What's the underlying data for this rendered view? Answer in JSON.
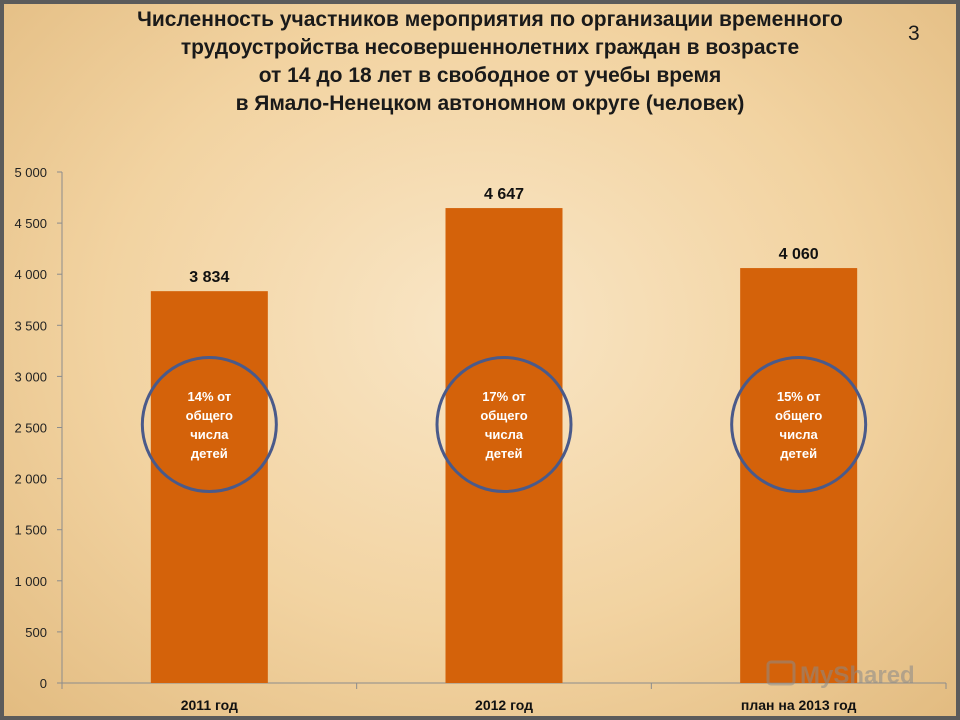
{
  "slide": {
    "title_lines": [
      "Численность участников мероприятия по организации временного",
      "трудоустройства несовершеннолетних граждан в возрасте",
      "от 14 до 18 лет в свободное от учебы время",
      "в Ямало-Ненецком автономном округе (человек)"
    ],
    "page_number": "3"
  },
  "watermark": {
    "text": "MyShared"
  },
  "chart_data": {
    "type": "bar",
    "title": "Численность участников мероприятия по организации временного трудоустройства несовершеннолетних граждан в возрасте от 14 до 18 лет в свободное от учебы время в Ямало-Ненецком автономном округе (человек)",
    "categories": [
      "2011 год",
      "2012 год",
      "план на 2013 год"
    ],
    "values": [
      3834,
      4647,
      4060
    ],
    "data_labels": [
      "3 834",
      "4 647",
      "4 060"
    ],
    "ylim": [
      0,
      5000
    ],
    "yticks": [
      0,
      500,
      1000,
      1500,
      2000,
      2500,
      3000,
      3500,
      4000,
      4500,
      5000
    ],
    "ytick_labels": [
      "0",
      "500",
      "1 000",
      "1 500",
      "2 000",
      "2 500",
      "3 000",
      "3 500",
      "4 000",
      "4 500",
      "5 000"
    ],
    "annotations": [
      [
        "14% от",
        "общего",
        "числа",
        "детей"
      ],
      [
        "17% от",
        "общего",
        "числа",
        "детей"
      ],
      [
        "15% от",
        "общего",
        "числа",
        "детей"
      ]
    ],
    "bar_color": "#d4620a",
    "circle_color": "#4a5a8a",
    "grid": false,
    "legend": "none"
  }
}
